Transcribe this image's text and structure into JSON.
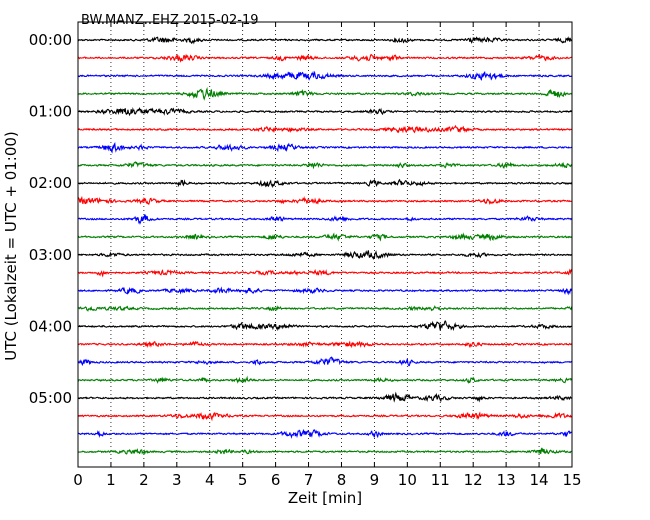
{
  "chart_data": {
    "type": "line",
    "title": "BW.MANZ..EHZ 2015-02-19",
    "xlabel": "Zeit  [min]",
    "ylabel": "UTC (Lokalzeit = UTC + 01:00)",
    "xlim": [
      0,
      15
    ],
    "x_ticks": [
      "0",
      "1",
      "2",
      "3",
      "4",
      "5",
      "6",
      "7",
      "8",
      "9",
      "10",
      "11",
      "12",
      "13",
      "14",
      "15"
    ],
    "y_ticks": [
      "00:00",
      "01:00",
      "02:00",
      "03:00",
      "04:00",
      "05:00"
    ],
    "grid": "vertical dotted lines at each minute",
    "trace_interval_minutes": 15,
    "series": [
      {
        "start": "00:00",
        "color": "#000000"
      },
      {
        "start": "00:15",
        "color": "#ff0000"
      },
      {
        "start": "00:30",
        "color": "#0000ff"
      },
      {
        "start": "00:45",
        "color": "#007f00"
      },
      {
        "start": "01:00",
        "color": "#000000"
      },
      {
        "start": "01:15",
        "color": "#ff0000"
      },
      {
        "start": "01:30",
        "color": "#0000ff"
      },
      {
        "start": "01:45",
        "color": "#007f00"
      },
      {
        "start": "02:00",
        "color": "#000000"
      },
      {
        "start": "02:15",
        "color": "#ff0000"
      },
      {
        "start": "02:30",
        "color": "#0000ff"
      },
      {
        "start": "02:45",
        "color": "#007f00"
      },
      {
        "start": "03:00",
        "color": "#000000"
      },
      {
        "start": "03:15",
        "color": "#ff0000"
      },
      {
        "start": "03:30",
        "color": "#0000ff"
      },
      {
        "start": "03:45",
        "color": "#007f00"
      },
      {
        "start": "04:00",
        "color": "#000000"
      },
      {
        "start": "04:15",
        "color": "#ff0000"
      },
      {
        "start": "04:30",
        "color": "#0000ff"
      },
      {
        "start": "04:45",
        "color": "#007f00"
      },
      {
        "start": "05:00",
        "color": "#000000"
      },
      {
        "start": "05:15",
        "color": "#ff0000"
      },
      {
        "start": "05:30",
        "color": "#0000ff"
      },
      {
        "start": "05:45",
        "color": "#007f00"
      }
    ]
  }
}
